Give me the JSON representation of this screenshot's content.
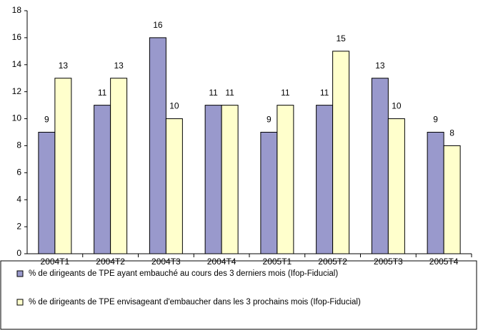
{
  "chart_data": {
    "type": "bar",
    "categories": [
      "2004T1",
      "2004T2",
      "2004T3",
      "2004T4",
      "2005T1",
      "2005T2",
      "2005T3",
      "2005T4"
    ],
    "series": [
      {
        "name": "% de dirigeants de TPE ayant embauché au cours des 3 derniers mois (Ifop-Fiducial)",
        "color": "#9999cc",
        "values": [
          9,
          11,
          16,
          11,
          9,
          11,
          13,
          9
        ]
      },
      {
        "name": "% de dirigeants de TPE envisageant d'embaucher dans les 3 prochains mois (Ifop-Fiducial)",
        "color": "#ffffcc",
        "values": [
          13,
          13,
          10,
          11,
          11,
          15,
          10,
          8
        ]
      }
    ],
    "ylim": [
      0,
      18
    ],
    "yticks": [
      0,
      2,
      4,
      6,
      8,
      10,
      12,
      14,
      16,
      18
    ],
    "grid": false
  }
}
